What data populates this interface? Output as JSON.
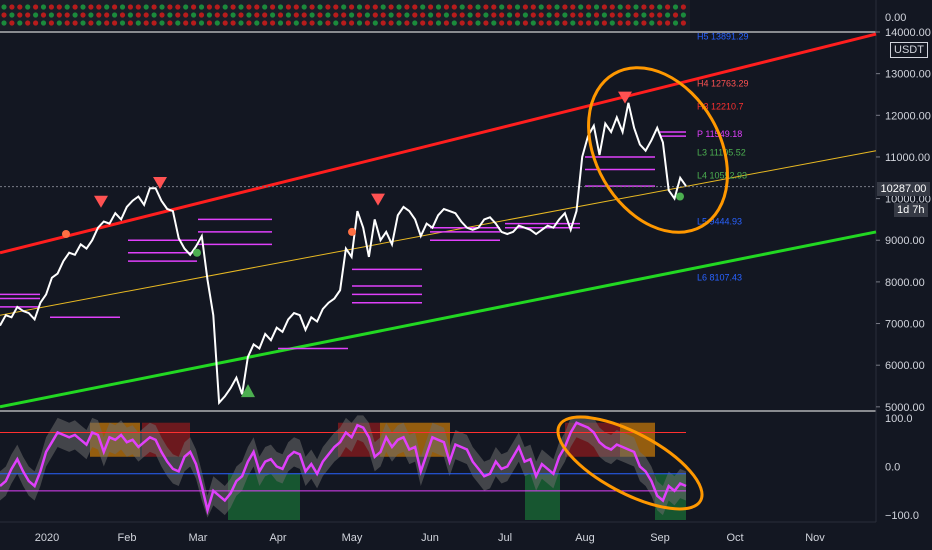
{
  "chart_data": [
    {
      "type": "heatmap",
      "name": "top-indicator",
      "yaxis_label": "0.00"
    },
    {
      "type": "line",
      "name": "price",
      "unit": "USDT",
      "ylim": [
        4900,
        14000
      ],
      "yticks": [
        5000,
        6000,
        7000,
        8000,
        9000,
        10000,
        11000,
        12000,
        13000,
        14000
      ],
      "ytick_labels": [
        "5000.00",
        "6000.00",
        "7000.00",
        "8000.00",
        "9000.00",
        "10000.00",
        "11000.00",
        "12000.00",
        "13000.00",
        "14000.00"
      ],
      "current_price": "10287.00",
      "countdown": "1d 7h",
      "xtick_labels": [
        "2020",
        "Feb",
        "Mar",
        "Apr",
        "May",
        "Jun",
        "Jul",
        "Aug",
        "Sep",
        "Oct",
        "Nov"
      ],
      "grid": false,
      "series": [
        {
          "values": [
            6950,
            7200,
            7150,
            7400,
            7300,
            7250,
            7100,
            7500,
            7700,
            8100,
            8200,
            8500,
            8700,
            8650,
            8900,
            8800,
            9000,
            9300,
            9450,
            9400,
            9650,
            9500,
            9800,
            9950,
            10050,
            9850,
            10250,
            10250,
            9950,
            9750,
            9700,
            9050,
            8800,
            8650,
            8850,
            9100,
            8050,
            7200,
            5100,
            5250,
            5450,
            5700,
            5300,
            6200,
            6500,
            6400,
            6750,
            6600,
            6900,
            6800,
            7100,
            7250,
            7200,
            6850,
            7150,
            7050,
            7350,
            7500,
            7600,
            7800,
            8800,
            8600,
            9700,
            9300,
            8600,
            9500,
            9000,
            9200,
            8900,
            9600,
            9800,
            9700,
            9500,
            9100,
            9400,
            9300,
            9600,
            9750,
            9700,
            9650,
            9450,
            9300,
            9250,
            9300,
            9500,
            9550,
            9400,
            9200,
            9150,
            9200,
            9350,
            9300,
            9250,
            9150,
            9250,
            9350,
            9300,
            9500,
            9650,
            9250,
            9700,
            11000,
            11500,
            11750,
            11050,
            11800,
            11600,
            11950,
            11600,
            12300,
            11700,
            11300,
            11150,
            11400,
            11700,
            11350,
            10200,
            10000,
            10500,
            10300
          ]
        }
      ],
      "pivot_levels": [
        {
          "label": "H5 13891.29",
          "value": 13891.29,
          "color": "#2962ff"
        },
        {
          "label": "H4 12763.29",
          "value": 12763.29,
          "color": "#ff5252"
        },
        {
          "label": "H3 12210.7",
          "value": 12210.7,
          "color": "#ff3030"
        },
        {
          "label": "P 11549.18",
          "value": 11549.18,
          "color": "#e040fb"
        },
        {
          "label": "L3 11105.52",
          "value": 11105.52,
          "color": "#4caf50"
        },
        {
          "label": "L4 10552.93",
          "value": 10552.93,
          "color": "#4caf50"
        },
        {
          "label": "L5 9444.93",
          "value": 9444.93,
          "color": "#2962ff"
        },
        {
          "label": "L6 8107.43",
          "value": 8107.43,
          "color": "#2962ff"
        }
      ],
      "channel_lines": [
        {
          "name": "upper",
          "color": "#ff1e1e",
          "from": 8700,
          "to": 13950
        },
        {
          "name": "middle",
          "color": "#e8b923",
          "from": 7200,
          "to": 11150
        },
        {
          "name": "lower",
          "color": "#22d822",
          "from": 5000,
          "to": 9200
        }
      ],
      "sell_markers": [
        9900,
        10350,
        9950,
        12400
      ],
      "buy_markers": [
        5400,
        8700,
        10050
      ]
    },
    {
      "type": "line",
      "name": "oscillator",
      "ylim": [
        -110,
        110
      ],
      "yticks": [
        100,
        0,
        -100
      ],
      "ytick_labels": [
        "100.0",
        "0.0",
        "−100.0"
      ],
      "series": [
        {
          "values": [
            -40,
            -30,
            -5,
            15,
            -10,
            -30,
            -40,
            -10,
            30,
            50,
            70,
            65,
            60,
            65,
            55,
            45,
            70,
            65,
            30,
            60,
            55,
            65,
            50,
            55,
            40,
            50,
            60,
            55,
            30,
            10,
            -5,
            -10,
            20,
            30,
            5,
            -40,
            -90,
            -50,
            -60,
            -70,
            -55,
            -30,
            -20,
            10,
            30,
            -10,
            10,
            15,
            0,
            -5,
            20,
            30,
            25,
            -10,
            5,
            -15,
            10,
            25,
            40,
            50,
            70,
            60,
            85,
            80,
            60,
            20,
            30,
            60,
            40,
            55,
            60,
            35,
            40,
            -10,
            25,
            60,
            55,
            50,
            10,
            45,
            40,
            35,
            10,
            -5,
            -20,
            -15,
            10,
            -5,
            0,
            20,
            40,
            10,
            15,
            -20,
            5,
            -5,
            -15,
            20,
            40,
            70,
            90,
            85,
            80,
            70,
            50,
            40,
            35,
            45,
            40,
            35,
            30,
            0,
            -10,
            -30,
            -60,
            -70,
            -40,
            -50,
            -35,
            -40
          ]
        }
      ],
      "upper_level": 70,
      "lower_level": -50
    }
  ]
}
